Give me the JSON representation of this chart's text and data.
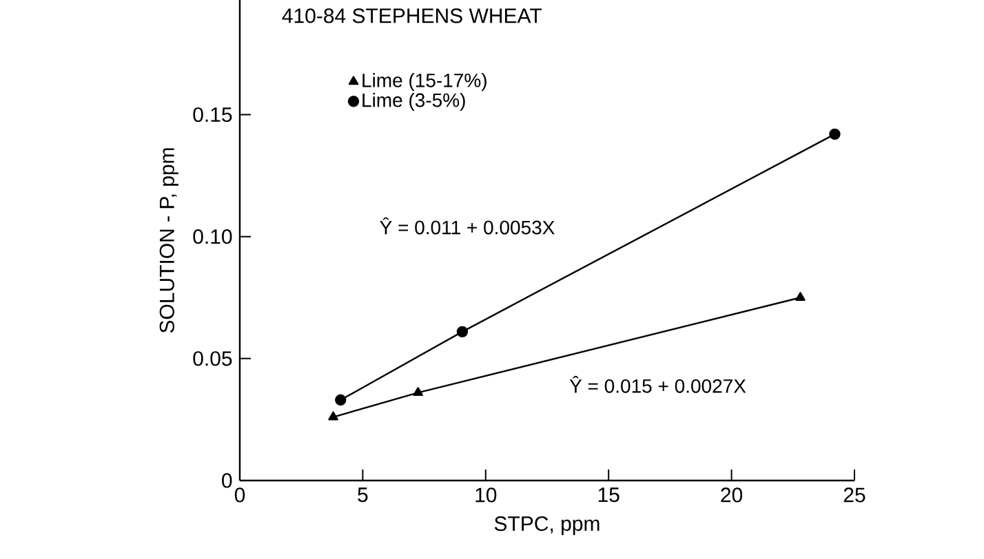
{
  "chart_data": {
    "type": "line",
    "title": "410-84 STEPHENS WHEAT",
    "xlabel": "STPC, ppm",
    "ylabel": "SOLUTION - P, ppm",
    "series": [
      {
        "name": "Lime (15-17%)",
        "color": "#000000",
        "marker": "triangle",
        "x": [
          3.8,
          7.25,
          22.8
        ],
        "values": [
          0.026,
          0.036,
          0.075
        ]
      },
      {
        "name": "Lime (3-5%)",
        "color": "#000000",
        "marker": "circle",
        "x": [
          4.1,
          9.05,
          24.2
        ],
        "values": [
          0.033,
          0.061,
          0.142
        ]
      }
    ],
    "annotations": [
      "Ŷ = 0.011 + 0.0053X",
      "Ŷ = 0.015 + 0.0027X"
    ],
    "xlim": [
      0,
      25
    ],
    "ylim": [
      0,
      0.197
    ],
    "xticks": [
      0,
      5,
      10,
      15,
      20,
      25
    ],
    "yticks": [
      0,
      0.05,
      {
        "value": 0.1,
        "label": "0.10"
      },
      0.15
    ],
    "legend": "top left",
    "line_style": "solid",
    "grid": false
  }
}
